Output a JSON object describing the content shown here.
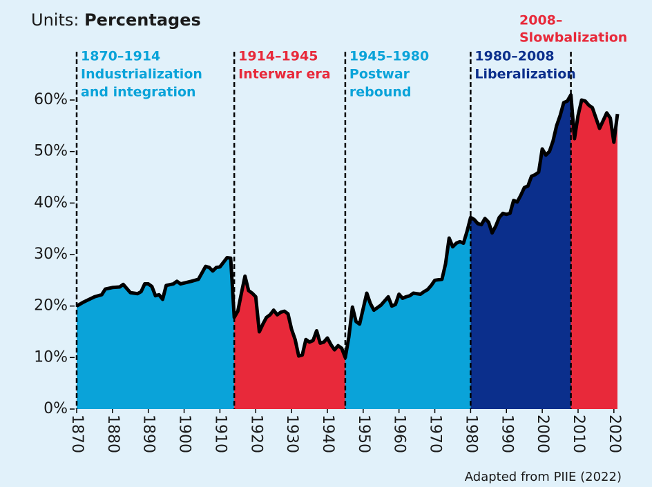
{
  "chart_data": {
    "type": "area",
    "units_label": "Units:",
    "units": "Percentages",
    "source": "Adapted from PIIE (2022)",
    "line_color": "#000000",
    "x": [
      1870,
      1872,
      1875,
      1877,
      1878,
      1880,
      1882,
      1883,
      1885,
      1887,
      1888,
      1889,
      1890,
      1891,
      1892,
      1893,
      1894,
      1895,
      1897,
      1898,
      1899,
      1902,
      1904,
      1906,
      1907,
      1908,
      1909,
      1910,
      1912,
      1913,
      1914,
      1915,
      1916,
      1917,
      1918,
      1919,
      1920,
      1921,
      1922,
      1923,
      1924,
      1925,
      1926,
      1927,
      1928,
      1929,
      1930,
      1931,
      1932,
      1933,
      1934,
      1935,
      1936,
      1937,
      1938,
      1939,
      1940,
      1941,
      1942,
      1943,
      1944,
      1945,
      1946,
      1947,
      1948,
      1949,
      1950,
      1951,
      1952,
      1953,
      1955,
      1957,
      1958,
      1959,
      1960,
      1961,
      1962,
      1963,
      1964,
      1966,
      1967,
      1968,
      1969,
      1970,
      1972,
      1973,
      1974,
      1975,
      1976,
      1977,
      1978,
      1979,
      1980,
      1981,
      1982,
      1983,
      1984,
      1985,
      1986,
      1987,
      1988,
      1989,
      1990,
      1991,
      1992,
      1993,
      1994,
      1995,
      1996,
      1997,
      1998,
      1999,
      2000,
      2001,
      2002,
      2003,
      2004,
      2005,
      2006,
      2007,
      2008,
      2009,
      2010,
      2011,
      2012,
      2013,
      2014,
      2015,
      2016,
      2017,
      2018,
      2019,
      2020,
      2021
    ],
    "values": [
      20,
      20.8,
      21.8,
      22.2,
      23.3,
      23.6,
      23.7,
      24.2,
      22.6,
      22.4,
      22.8,
      24.3,
      24.3,
      23.8,
      22,
      22.2,
      21.3,
      24,
      24.3,
      24.8,
      24.3,
      24.8,
      25.2,
      27.7,
      27.5,
      26.8,
      27.5,
      27.6,
      29.4,
      29.3,
      17.8,
      19,
      22.5,
      25.8,
      23,
      22.5,
      21.8,
      15,
      16.5,
      17.8,
      18.3,
      19.2,
      18.3,
      18.8,
      19,
      18.5,
      15.5,
      13.5,
      10.3,
      10.5,
      13.5,
      13,
      13.3,
      15.2,
      12.8,
      13,
      13.8,
      12.5,
      11.5,
      12.3,
      11.8,
      10,
      14,
      19.8,
      17,
      16.5,
      19.5,
      22.5,
      20.5,
      19.2,
      20.2,
      21.8,
      20,
      20.3,
      22.3,
      21.5,
      21.8,
      22,
      22.5,
      22.3,
      22.8,
      23.2,
      24,
      25,
      25.2,
      28.2,
      33.2,
      31.5,
      32.2,
      32.5,
      32.2,
      34.5,
      37.2,
      36.8,
      36,
      35.8,
      37,
      36.3,
      34.2,
      35.5,
      37.2,
      38,
      37.8,
      38,
      40.5,
      40.2,
      41.5,
      43,
      43.3,
      45.2,
      45.5,
      46,
      50.5,
      49.3,
      50,
      52,
      55,
      57,
      59.5,
      59.8,
      61,
      52.5,
      57,
      60,
      59.8,
      59,
      58.5,
      56.5,
      54.5,
      56,
      57.5,
      56.5,
      51.8,
      57.3
    ],
    "xlim": [
      1870,
      2021
    ],
    "ylim": [
      0,
      60
    ],
    "xticks": [
      1870,
      1880,
      1890,
      1900,
      1910,
      1920,
      1930,
      1940,
      1950,
      1960,
      1970,
      1980,
      1990,
      2000,
      2010,
      2020
    ],
    "yticks": [
      {
        "value": 0,
        "label": "0%"
      },
      {
        "value": 10,
        "label": "10%"
      },
      {
        "value": 20,
        "label": "20%"
      },
      {
        "value": 30,
        "label": "30%"
      },
      {
        "value": 40,
        "label": "40%"
      },
      {
        "value": 50,
        "label": "50%"
      },
      {
        "value": 60,
        "label": "60%"
      }
    ],
    "eras": [
      {
        "start": 1870,
        "label": "1870–1914",
        "name": [
          "Industrialization",
          "and integration"
        ],
        "color": "#0aa3d9"
      },
      {
        "start": 1914,
        "label": "1914–1945",
        "name": [
          "Interwar era"
        ],
        "color": "#e8293a"
      },
      {
        "start": 1945,
        "label": "1945–1980",
        "name": [
          "Postwar",
          "rebound"
        ],
        "color": "#0aa3d9"
      },
      {
        "start": 1980,
        "label": "1980–2008",
        "name": [
          "Liberalization"
        ],
        "color": "#0b2f8c"
      },
      {
        "start": 2008,
        "label": "2008–",
        "name": [
          "Slowbalization"
        ],
        "color": "#e8293a"
      }
    ]
  }
}
